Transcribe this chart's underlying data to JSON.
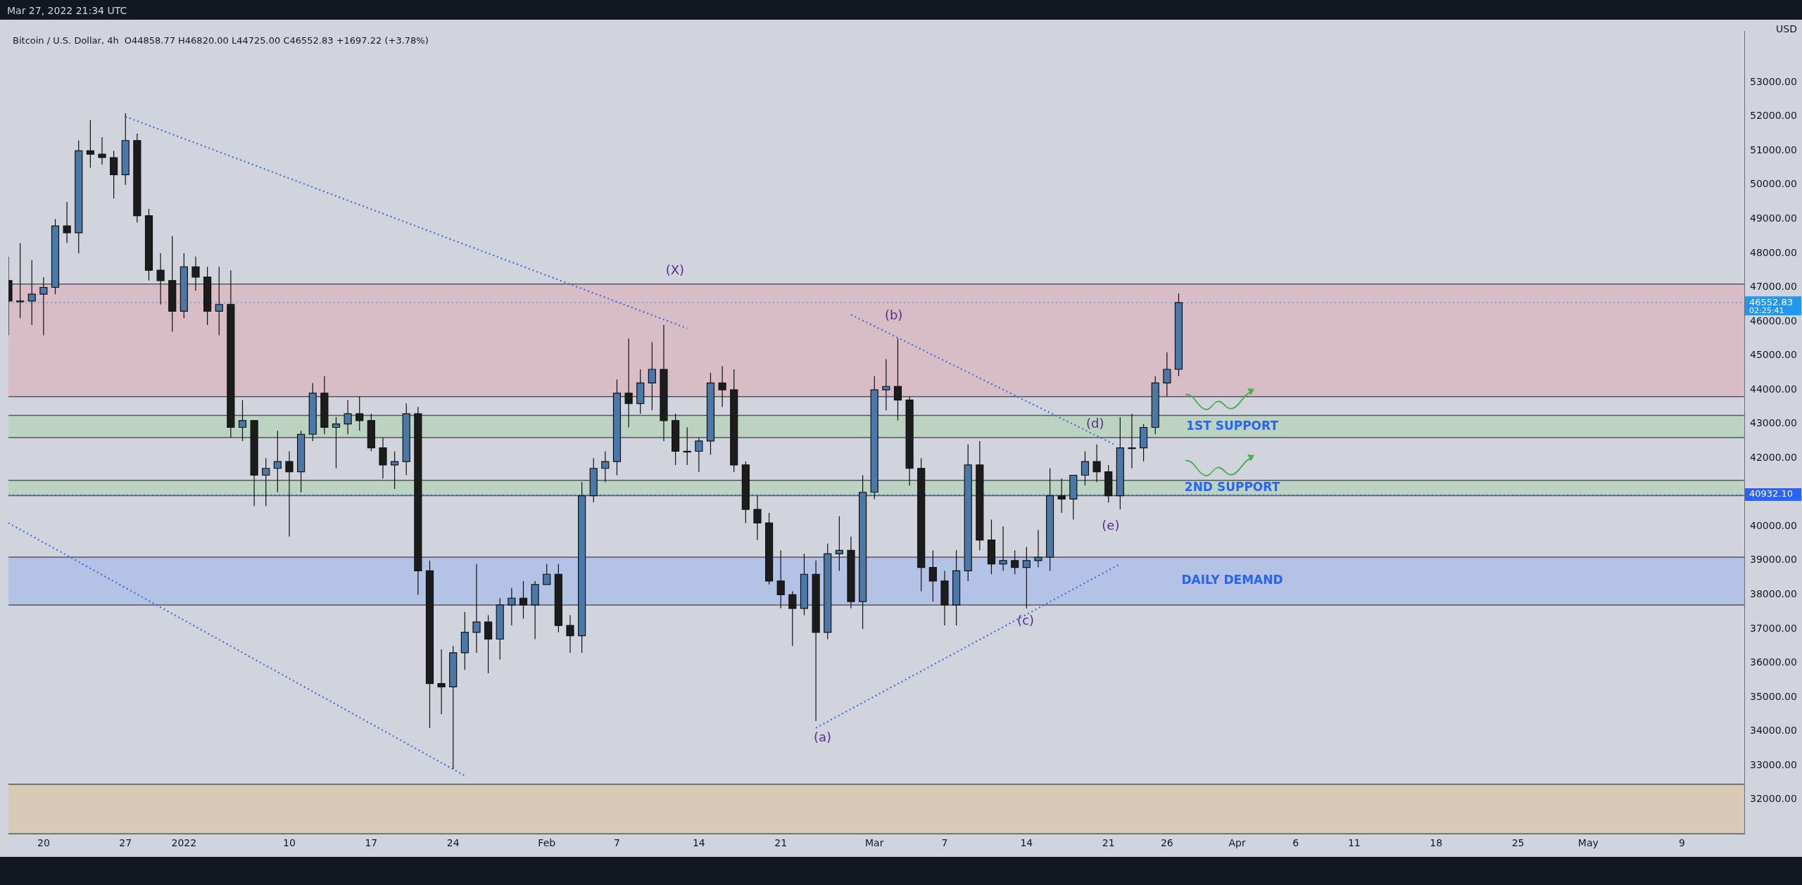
{
  "chart_data": {
    "type": "candlestick",
    "title": "Bitcoin / U.S. Dollar, 4h",
    "subtitle": "O44858.77 H46820.00 L44725.00 C46552.83 +1697.22 (+3.78%)",
    "ylabel": "USD",
    "x": [
      "2021-12-17",
      "2021-12-18",
      "2021-12-19",
      "2021-12-20",
      "2021-12-21",
      "2021-12-22",
      "2021-12-23",
      "2021-12-24",
      "2021-12-25",
      "2021-12-26",
      "2021-12-27",
      "2021-12-28",
      "2021-12-29",
      "2021-12-30",
      "2021-12-31",
      "2022-01-01",
      "2022-01-02",
      "2022-01-03",
      "2022-01-04",
      "2022-01-05",
      "2022-01-06",
      "2022-01-07",
      "2022-01-08",
      "2022-01-09",
      "2022-01-10",
      "2022-01-11",
      "2022-01-12",
      "2022-01-13",
      "2022-01-14",
      "2022-01-15",
      "2022-01-16",
      "2022-01-17",
      "2022-01-18",
      "2022-01-19",
      "2022-01-20",
      "2022-01-21",
      "2022-01-22",
      "2022-01-23",
      "2022-01-24",
      "2022-01-25",
      "2022-01-26",
      "2022-01-27",
      "2022-01-28",
      "2022-01-29",
      "2022-01-30",
      "2022-01-31",
      "2022-02-01",
      "2022-02-02",
      "2022-02-03",
      "2022-02-04",
      "2022-02-05",
      "2022-02-06",
      "2022-02-07",
      "2022-02-08",
      "2022-02-09",
      "2022-02-10",
      "2022-02-11",
      "2022-02-12",
      "2022-02-13",
      "2022-02-14",
      "2022-02-15",
      "2022-02-16",
      "2022-02-17",
      "2022-02-18",
      "2022-02-19",
      "2022-02-20",
      "2022-02-21",
      "2022-02-22",
      "2022-02-23",
      "2022-02-24",
      "2022-02-25",
      "2022-02-26",
      "2022-02-27",
      "2022-02-28",
      "2022-03-01",
      "2022-03-02",
      "2022-03-03",
      "2022-03-04",
      "2022-03-05",
      "2022-03-06",
      "2022-03-07",
      "2022-03-08",
      "2022-03-09",
      "2022-03-10",
      "2022-03-11",
      "2022-03-12",
      "2022-03-13",
      "2022-03-14",
      "2022-03-15",
      "2022-03-16",
      "2022-03-17",
      "2022-03-18",
      "2022-03-19",
      "2022-03-20",
      "2022-03-21",
      "2022-03-22",
      "2022-03-23",
      "2022-03-24",
      "2022-03-25",
      "2022-03-26",
      "2022-03-27"
    ],
    "ohlc": [
      [
        47200,
        47900,
        45600,
        46600
      ],
      [
        46600,
        48300,
        46100,
        46600
      ],
      [
        46600,
        47800,
        45900,
        46800
      ],
      [
        46800,
        47300,
        45600,
        47000
      ],
      [
        47000,
        49000,
        46800,
        48800
      ],
      [
        48800,
        49500,
        48300,
        48600
      ],
      [
        48600,
        51300,
        48000,
        51000
      ],
      [
        51000,
        51900,
        50500,
        50900
      ],
      [
        50900,
        51400,
        50600,
        50800
      ],
      [
        50800,
        51000,
        49600,
        50300
      ],
      [
        50300,
        52100,
        50000,
        51300
      ],
      [
        51300,
        51500,
        48900,
        49100
      ],
      [
        49100,
        49300,
        47200,
        47500
      ],
      [
        47500,
        48000,
        46500,
        47200
      ],
      [
        47200,
        48500,
        45700,
        46300
      ],
      [
        46300,
        48000,
        46100,
        47600
      ],
      [
        47600,
        47900,
        46900,
        47300
      ],
      [
        47300,
        47600,
        45900,
        46300
      ],
      [
        46300,
        47600,
        45600,
        46500
      ],
      [
        46500,
        47500,
        42600,
        42900
      ],
      [
        42900,
        43700,
        42500,
        43100
      ],
      [
        43100,
        43100,
        40600,
        41500
      ],
      [
        41500,
        42000,
        40600,
        41700
      ],
      [
        41700,
        42800,
        41000,
        41900
      ],
      [
        41900,
        42200,
        39700,
        41600
      ],
      [
        41600,
        42800,
        41000,
        42700
      ],
      [
        42700,
        44200,
        42500,
        43900
      ],
      [
        43900,
        44400,
        42700,
        42900
      ],
      [
        42900,
        43200,
        41700,
        43000
      ],
      [
        43000,
        43700,
        42700,
        43300
      ],
      [
        43300,
        43800,
        42800,
        43100
      ],
      [
        43100,
        43300,
        42200,
        42300
      ],
      [
        42300,
        42600,
        41400,
        41800
      ],
      [
        41800,
        42200,
        41100,
        41900
      ],
      [
        41900,
        43600,
        41500,
        43300
      ],
      [
        43300,
        43500,
        38000,
        38700
      ],
      [
        38700,
        39000,
        34100,
        35400
      ],
      [
        35400,
        36400,
        34500,
        35300
      ],
      [
        35300,
        36500,
        32900,
        36300
      ],
      [
        36300,
        37500,
        35800,
        36900
      ],
      [
        36900,
        38900,
        36300,
        37200
      ],
      [
        37200,
        37400,
        35700,
        36700
      ],
      [
        36700,
        37900,
        36100,
        37700
      ],
      [
        37700,
        38200,
        37100,
        37900
      ],
      [
        37900,
        38400,
        37300,
        37700
      ],
      [
        37700,
        38400,
        36700,
        38300
      ],
      [
        38300,
        38900,
        38300,
        38600
      ],
      [
        38600,
        38900,
        36900,
        37100
      ],
      [
        37100,
        37400,
        36300,
        36800
      ],
      [
        36800,
        41300,
        36300,
        40900
      ],
      [
        40900,
        42000,
        40700,
        41700
      ],
      [
        41700,
        42200,
        41300,
        41900
      ],
      [
        41900,
        44300,
        41500,
        43900
      ],
      [
        43900,
        45500,
        42900,
        43600
      ],
      [
        43600,
        44600,
        43300,
        44200
      ],
      [
        44200,
        45400,
        43400,
        44600
      ],
      [
        44600,
        45900,
        42500,
        43100
      ],
      [
        43100,
        43300,
        41800,
        42200
      ],
      [
        42200,
        42900,
        41800,
        42200
      ],
      [
        42200,
        42600,
        41600,
        42500
      ],
      [
        42500,
        44500,
        42100,
        44200
      ],
      [
        44200,
        44700,
        43500,
        44000
      ],
      [
        44000,
        44600,
        41600,
        41800
      ],
      [
        41800,
        41900,
        40100,
        40500
      ],
      [
        40500,
        40900,
        39600,
        40100
      ],
      [
        40100,
        40400,
        38300,
        38400
      ],
      [
        38400,
        39300,
        37600,
        38000
      ],
      [
        38000,
        38100,
        36500,
        37600
      ],
      [
        37600,
        39200,
        37400,
        38600
      ],
      [
        38600,
        39000,
        34300,
        36900
      ],
      [
        36900,
        39500,
        36700,
        39200
      ],
      [
        39200,
        40300,
        38700,
        39300
      ],
      [
        39300,
        39700,
        37600,
        37800
      ],
      [
        37800,
        41500,
        37000,
        41000
      ],
      [
        41000,
        44400,
        40800,
        44000
      ],
      [
        44000,
        44900,
        43400,
        44100
      ],
      [
        44100,
        45500,
        43100,
        43700
      ],
      [
        43700,
        43800,
        41200,
        41700
      ],
      [
        41700,
        42000,
        38100,
        38800
      ],
      [
        38800,
        39300,
        37800,
        38400
      ],
      [
        38400,
        38700,
        37100,
        37700
      ],
      [
        37700,
        39300,
        37100,
        38700
      ],
      [
        38700,
        42400,
        38400,
        41800
      ],
      [
        41800,
        42500,
        39300,
        39600
      ],
      [
        39600,
        40200,
        38600,
        38900
      ],
      [
        38900,
        40000,
        38700,
        39000
      ],
      [
        39000,
        39300,
        38600,
        38800
      ],
      [
        38800,
        39400,
        37600,
        39000
      ],
      [
        39000,
        39900,
        38800,
        39100
      ],
      [
        39100,
        41700,
        38700,
        40900
      ],
      [
        40900,
        41400,
        40400,
        40800
      ],
      [
        40800,
        41500,
        40200,
        41500
      ],
      [
        41500,
        42200,
        41200,
        41900
      ],
      [
        41900,
        42400,
        41300,
        41600
      ],
      [
        41600,
        41800,
        40700,
        40900
      ],
      [
        40900,
        43200,
        40500,
        42300
      ],
      [
        42300,
        43300,
        41700,
        42300
      ],
      [
        42300,
        43000,
        41900,
        42900
      ],
      [
        42900,
        44400,
        42700,
        44200
      ],
      [
        44200,
        45100,
        43800,
        44600
      ],
      [
        44600,
        46820,
        44400,
        46552.83
      ]
    ],
    "colors": [
      "#1c1c1c",
      "#1c1c1c",
      "#4a78a8",
      "#4a78a8",
      "#4a78a8",
      "#1c1c1c",
      "#4a78a8",
      "#1c1c1c",
      "#1c1c1c",
      "#1c1c1c",
      "#4a78a8",
      "#1c1c1c",
      "#1c1c1c",
      "#1c1c1c",
      "#1c1c1c",
      "#4a78a8",
      "#1c1c1c",
      "#1c1c1c",
      "#4a78a8",
      "#1c1c1c",
      "#4a78a8",
      "#1c1c1c",
      "#4a78a8",
      "#4a78a8",
      "#1c1c1c",
      "#4a78a8",
      "#4a78a8",
      "#1c1c1c",
      "#4a78a8",
      "#4a78a8",
      "#1c1c1c",
      "#1c1c1c",
      "#1c1c1c",
      "#4a78a8",
      "#4a78a8",
      "#1c1c1c",
      "#1c1c1c",
      "#1c1c1c",
      "#4a78a8",
      "#4a78a8",
      "#4a78a8",
      "#1c1c1c",
      "#4a78a8",
      "#4a78a8",
      "#1c1c1c",
      "#4a78a8",
      "#4a78a8",
      "#1c1c1c",
      "#1c1c1c",
      "#4a78a8",
      "#4a78a8",
      "#4a78a8",
      "#4a78a8",
      "#1c1c1c",
      "#4a78a8",
      "#4a78a8",
      "#1c1c1c",
      "#1c1c1c",
      "#1c1c1c",
      "#4a78a8",
      "#4a78a8",
      "#1c1c1c",
      "#1c1c1c",
      "#1c1c1c",
      "#1c1c1c",
      "#1c1c1c",
      "#1c1c1c",
      "#1c1c1c",
      "#4a78a8",
      "#1c1c1c",
      "#4a78a8",
      "#4a78a8",
      "#1c1c1c",
      "#4a78a8",
      "#4a78a8",
      "#4a78a8",
      "#1c1c1c",
      "#1c1c1c",
      "#1c1c1c",
      "#1c1c1c",
      "#1c1c1c",
      "#4a78a8",
      "#4a78a8",
      "#1c1c1c",
      "#1c1c1c",
      "#4a78a8",
      "#1c1c1c",
      "#4a78a8",
      "#4a78a8",
      "#4a78a8",
      "#1c1c1c",
      "#4a78a8",
      "#4a78a8",
      "#1c1c1c",
      "#1c1c1c",
      "#4a78a8",
      "#1c1c1c",
      "#4a78a8",
      "#4a78a8",
      "#4a78a8",
      "#4a78a8"
    ],
    "series": [
      {
        "type": "line",
        "color": "#3d6be0",
        "x": [
          "2021-12-27",
          "2022-02-13"
        ],
        "values": [
          52000,
          45800
        ]
      },
      {
        "type": "line",
        "color": "#3d6be0",
        "x": [
          "2021-12-17",
          "2022-01-25"
        ],
        "values": [
          40100,
          32700
        ]
      },
      {
        "type": "line",
        "color": "#3d6be0",
        "x": [
          "2022-02-27",
          "2022-03-21T12:00"
        ],
        "values": [
          46200,
          42400
        ]
      },
      {
        "type": "line",
        "color": "#3d6be0",
        "x": [
          "2022-02-24",
          "2022-03-22"
        ],
        "values": [
          34100,
          38900
        ]
      }
    ],
    "line_style": "dotted",
    "marker": "none",
    "xlim": [
      "2021-12-17",
      "2022-05-14T08:00"
    ],
    "xticks": [
      {
        "value": "2021-12-20",
        "label": "20"
      },
      {
        "value": "2021-12-27",
        "label": "27"
      },
      {
        "value": "2022-01-01",
        "label": "2022"
      },
      {
        "value": "2022-01-10",
        "label": "10"
      },
      {
        "value": "2022-01-17",
        "label": "17"
      },
      {
        "value": "2022-01-24",
        "label": "24"
      },
      {
        "value": "2022-02-01",
        "label": "Feb"
      },
      {
        "value": "2022-02-07",
        "label": "7"
      },
      {
        "value": "2022-02-14",
        "label": "14"
      },
      {
        "value": "2022-02-21",
        "label": "21"
      },
      {
        "value": "2022-03-01",
        "label": "Mar"
      },
      {
        "value": "2022-03-07",
        "label": "7"
      },
      {
        "value": "2022-03-14",
        "label": "14"
      },
      {
        "value": "2022-03-21",
        "label": "21"
      },
      {
        "value": "2022-03-26",
        "label": "26"
      },
      {
        "value": "2022-04-01",
        "label": "Apr"
      },
      {
        "value": "2022-04-06",
        "label": "6"
      },
      {
        "value": "2022-04-11",
        "label": "11"
      },
      {
        "value": "2022-04-18",
        "label": "18"
      },
      {
        "value": "2022-04-25",
        "label": "25"
      },
      {
        "value": "2022-05-01",
        "label": "May"
      },
      {
        "value": "2022-05-09",
        "label": "9"
      }
    ],
    "ylim": [
      31000,
      54500
    ],
    "yticks": [
      {
        "value": 32000,
        "label": "32000.00"
      },
      {
        "value": 33000,
        "label": "33000.00"
      },
      {
        "value": 34000,
        "label": "34000.00"
      },
      {
        "value": 35000,
        "label": "35000.00"
      },
      {
        "value": 36000,
        "label": "36000.00"
      },
      {
        "value": 37000,
        "label": "37000.00"
      },
      {
        "value": 38000,
        "label": "38000.00"
      },
      {
        "value": 39000,
        "label": "39000.00"
      },
      {
        "value": 40000,
        "label": "40000.00"
      },
      {
        "value": 41000,
        "label": null
      },
      {
        "value": 42000,
        "label": "42000.00"
      },
      {
        "value": 43000,
        "label": "43000.00"
      },
      {
        "value": 44000,
        "label": "44000.00"
      },
      {
        "value": 45000,
        "label": "45000.00"
      },
      {
        "value": 46000,
        "label": "46000.00"
      },
      {
        "value": 47000,
        "label": "47000.00"
      },
      {
        "value": 48000,
        "label": "48000.00"
      },
      {
        "value": 49000,
        "label": "49000.00"
      },
      {
        "value": 50000,
        "label": "50000.00"
      },
      {
        "value": 51000,
        "label": "51000.00"
      },
      {
        "value": 52000,
        "label": "52000.00"
      },
      {
        "value": 53000,
        "label": "53000.00"
      }
    ],
    "bands": [
      {
        "axis": "y",
        "from": 43800,
        "to": 47100,
        "color": "#d8bcc6"
      },
      {
        "axis": "y",
        "from": 42600,
        "to": 43250,
        "label": "1ST SUPPORT",
        "color": "#bcd3c2"
      },
      {
        "axis": "y",
        "from": 40900,
        "to": 41350,
        "label": "2ND SUPPORT",
        "color": "#bcd3c2"
      },
      {
        "axis": "y",
        "from": 37700,
        "to": 39100,
        "label": "DAILY DEMAND",
        "color": "#b4c2e6"
      },
      {
        "axis": "y",
        "from": 31000,
        "to": 32450,
        "color": "#d9cab8"
      }
    ],
    "ref_lines": [
      {
        "axis": "y",
        "value": 46552.83,
        "label": "46552.83",
        "color": "#2196f3",
        "line_style": "dotted"
      },
      {
        "axis": "y",
        "value": 40932.1,
        "label": "40932.10",
        "color": "#2962ff",
        "line_style": "dotted"
      }
    ],
    "annotations": [
      "Mar 27, 2022 21:34 UTC",
      "02:25:41",
      "(X)",
      "(b)",
      "(a)",
      "(c)",
      "(d)",
      "(e)"
    ]
  }
}
